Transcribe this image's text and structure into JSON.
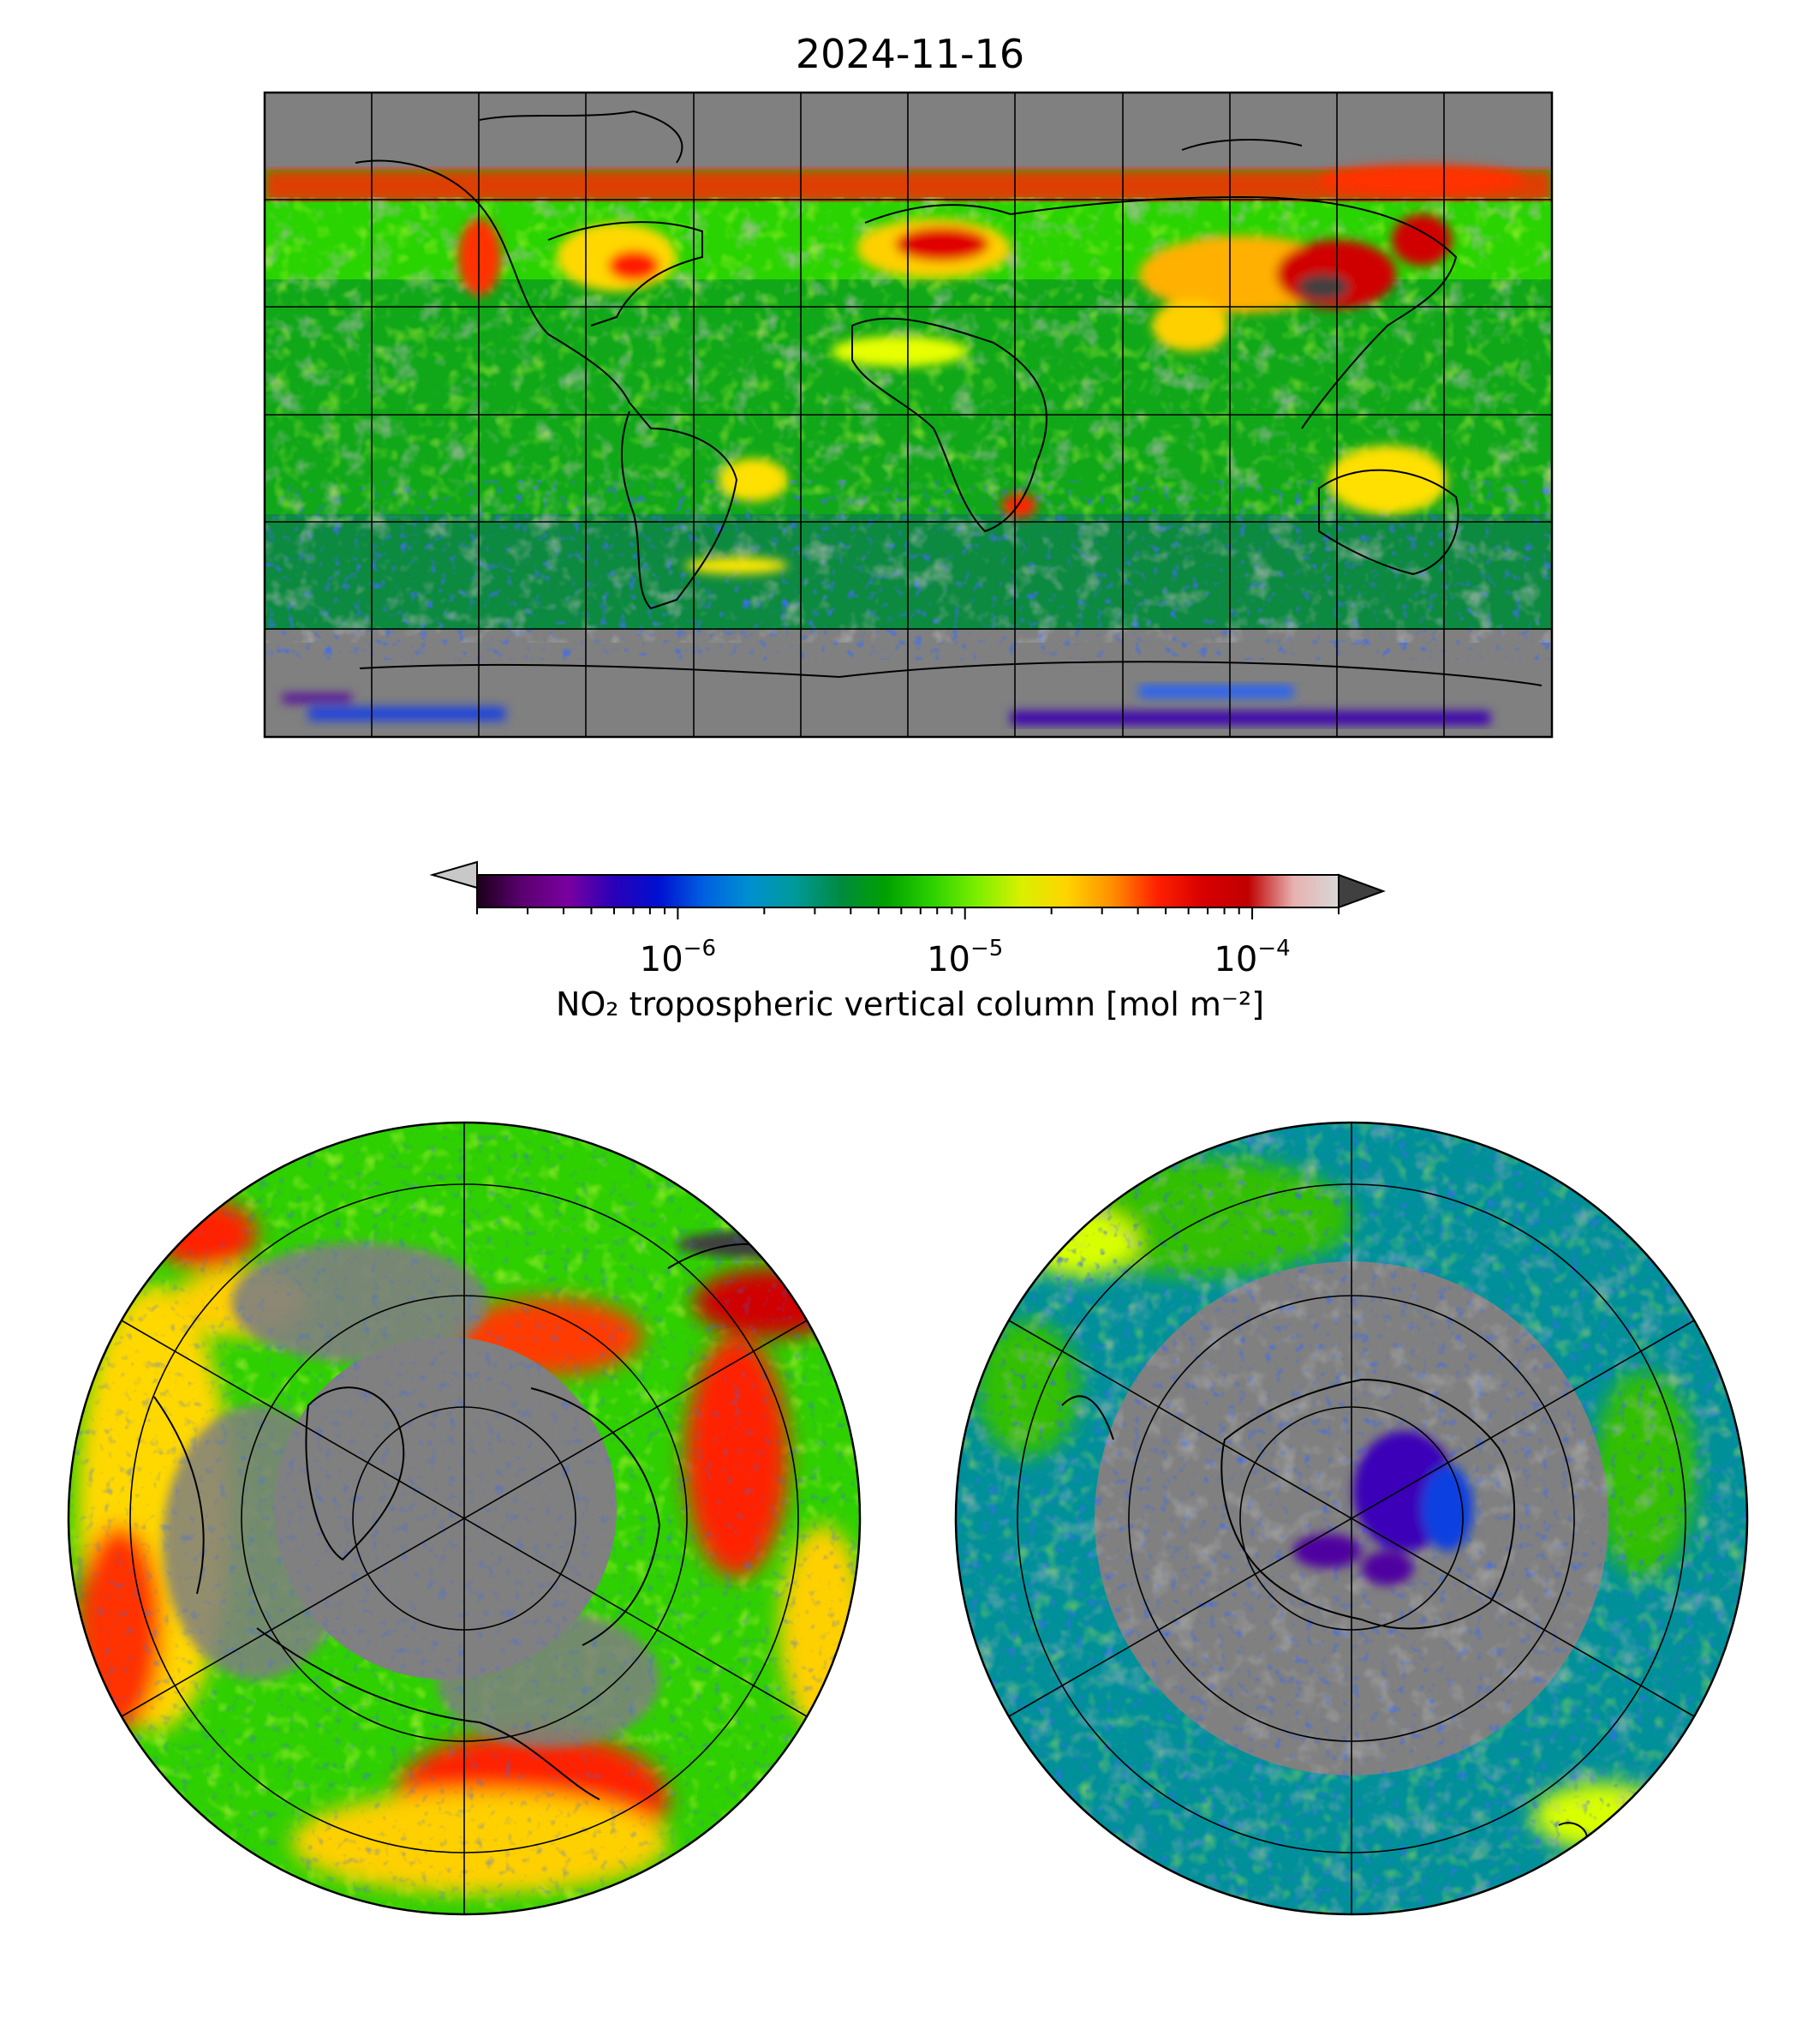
{
  "title": "2024-11-16",
  "colorbar": {
    "label": "NO₂ tropospheric vertical column [mol m⁻²]",
    "scale": "log",
    "range": [
      2e-07,
      0.0002
    ],
    "extend": "both",
    "major_ticks": [
      {
        "value": 1e-06,
        "base": "10",
        "exp": "−6"
      },
      {
        "value": 1e-05,
        "base": "10",
        "exp": "−5"
      },
      {
        "value": 0.0001,
        "base": "10",
        "exp": "−4"
      }
    ],
    "colormap_stops": [
      "#1a0018",
      "#5b0070",
      "#7a00a0",
      "#2a00b8",
      "#0010d0",
      "#0060e0",
      "#0090d0",
      "#009a9a",
      "#008a40",
      "#00a000",
      "#2ad000",
      "#7aee00",
      "#d8f000",
      "#ffd400",
      "#ff9000",
      "#ff2000",
      "#d80000",
      "#c00000",
      "#e8b0b0",
      "#d8d8d8"
    ],
    "under_color": "#c8c8c8",
    "over_color": "#404040"
  },
  "maps": {
    "global": {
      "projection": "equirectangular",
      "no_data_color": "#808080",
      "gridlines": "30° lon × 30° lat"
    },
    "north_polar": {
      "projection": "polar stereographic (north)",
      "no_data_color": "#808080"
    },
    "south_polar": {
      "projection": "polar stereographic (south)",
      "no_data_color": "#808080"
    }
  },
  "colors": {
    "no_data": "#808080",
    "background": "#ffffff",
    "low": "#0030d0",
    "mid": "#00b000",
    "high": "#ff1000"
  }
}
